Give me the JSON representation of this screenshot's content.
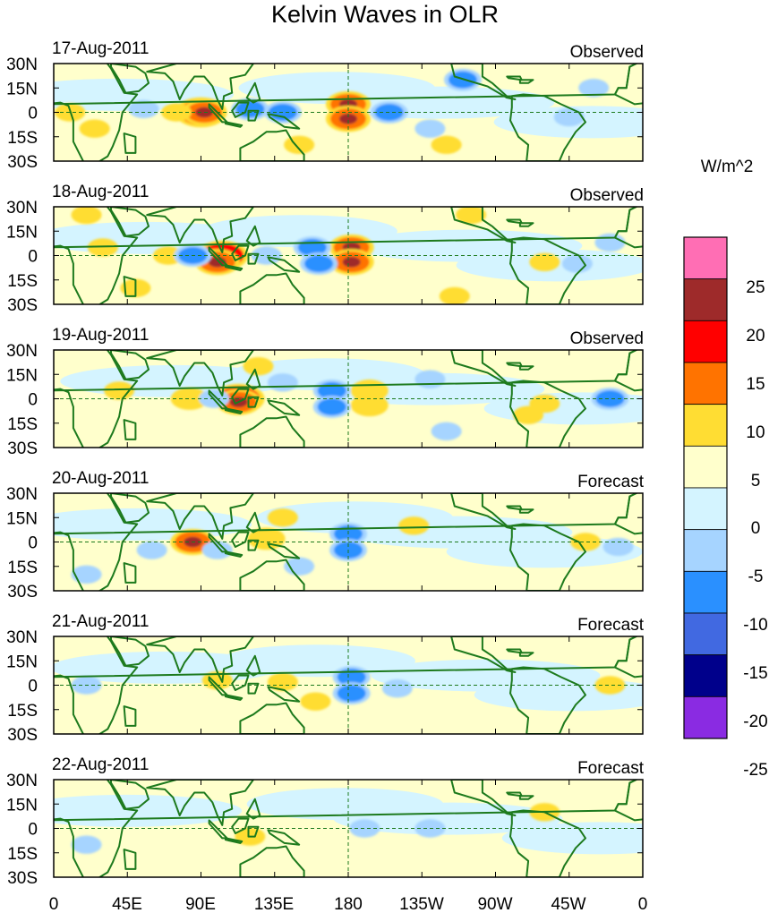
{
  "title": "Kelvin Waves in OLR",
  "units": "W/m^2",
  "lat_labels": [
    "30N",
    "15N",
    "0",
    "15S",
    "30S"
  ],
  "lon_labels": [
    "0",
    "45E",
    "90E",
    "135E",
    "180",
    "135W",
    "90W",
    "45W",
    "0"
  ],
  "colorbar": {
    "labels": [
      "25",
      "20",
      "15",
      "10",
      "5",
      "0",
      "-5",
      "-10",
      "-15",
      "-20",
      "-25"
    ],
    "colors": [
      "#ff6eb4",
      "#9e2a2a",
      "#ff0000",
      "#ff7300",
      "#ffdd33",
      "#ffffcc",
      "#d4f4ff",
      "#a6d4ff",
      "#2a90ff",
      "#4169e1",
      "#00008b",
      "#8a2be2"
    ]
  },
  "colors": {
    "land": "#1d7a1d",
    "neutral_pos": "#ffffcc",
    "neutral_neg": "#d4f4ff"
  },
  "panels": [
    {
      "date": "17-Aug-2011",
      "source": "Observed"
    },
    {
      "date": "18-Aug-2011",
      "source": "Observed"
    },
    {
      "date": "19-Aug-2011",
      "source": "Observed"
    },
    {
      "date": "20-Aug-2011",
      "source": "Forecast"
    },
    {
      "date": "21-Aug-2011",
      "source": "Forecast"
    },
    {
      "date": "22-Aug-2011",
      "source": "Forecast"
    }
  ],
  "anomalies": [
    [
      {
        "lon": 90,
        "lat": 0,
        "level": 4
      },
      {
        "lon": 92,
        "lat": 0,
        "level": 3
      },
      {
        "lon": 75,
        "lat": 0,
        "level": 1
      },
      {
        "lon": 180,
        "lat": 5,
        "level": 3
      },
      {
        "lon": 180,
        "lat": -4,
        "level": 3
      },
      {
        "lon": 140,
        "lat": 0,
        "level": -2
      },
      {
        "lon": 120,
        "lat": 2,
        "level": -2
      },
      {
        "lon": 205,
        "lat": 0,
        "level": -2
      },
      {
        "lon": 55,
        "lat": 2,
        "level": -1
      },
      {
        "lon": 250,
        "lat": 20,
        "level": -2
      },
      {
        "lon": 315,
        "lat": -3,
        "level": -1
      },
      {
        "lon": 25,
        "lat": -10,
        "level": 1
      },
      {
        "lon": 150,
        "lat": -20,
        "level": 1
      },
      {
        "lon": 230,
        "lat": -10,
        "level": -1
      },
      {
        "lon": 240,
        "lat": -20,
        "level": 1
      },
      {
        "lon": 330,
        "lat": 15,
        "level": -1
      },
      {
        "lon": 10,
        "lat": 0,
        "level": 1
      }
    ],
    [
      {
        "lon": 103,
        "lat": 0,
        "level": 4
      },
      {
        "lon": 100,
        "lat": -4,
        "level": 3
      },
      {
        "lon": 70,
        "lat": 0,
        "level": 1
      },
      {
        "lon": 182,
        "lat": 5,
        "level": 3
      },
      {
        "lon": 182,
        "lat": -4,
        "level": 3
      },
      {
        "lon": 85,
        "lat": 0,
        "level": -2
      },
      {
        "lon": 158,
        "lat": 5,
        "level": -2
      },
      {
        "lon": 162,
        "lat": -5,
        "level": -2
      },
      {
        "lon": 130,
        "lat": 0,
        "level": -1
      },
      {
        "lon": 30,
        "lat": 5,
        "level": 1
      },
      {
        "lon": 20,
        "lat": 25,
        "level": 1
      },
      {
        "lon": 255,
        "lat": 25,
        "level": 1
      },
      {
        "lon": 300,
        "lat": -4,
        "level": 1
      },
      {
        "lon": 340,
        "lat": 8,
        "level": -1
      },
      {
        "lon": 320,
        "lat": -5,
        "level": -1
      },
      {
        "lon": 245,
        "lat": -25,
        "level": 1
      },
      {
        "lon": 50,
        "lat": -20,
        "level": 1
      }
    ],
    [
      {
        "lon": 113,
        "lat": 0,
        "level": 4
      },
      {
        "lon": 113,
        "lat": -2,
        "level": 3
      },
      {
        "lon": 83,
        "lat": 0,
        "level": 2
      },
      {
        "lon": 193,
        "lat": 5,
        "level": 2
      },
      {
        "lon": 193,
        "lat": -4,
        "level": 2
      },
      {
        "lon": 170,
        "lat": 5,
        "level": -2
      },
      {
        "lon": 170,
        "lat": -5,
        "level": -2
      },
      {
        "lon": 98,
        "lat": 0,
        "level": -1
      },
      {
        "lon": 140,
        "lat": 10,
        "level": -1
      },
      {
        "lon": 125,
        "lat": 20,
        "level": 1
      },
      {
        "lon": 340,
        "lat": 0,
        "level": -2
      },
      {
        "lon": 300,
        "lat": -3,
        "level": 1
      },
      {
        "lon": 290,
        "lat": -10,
        "level": 1
      },
      {
        "lon": 40,
        "lat": 5,
        "level": 1
      },
      {
        "lon": 240,
        "lat": -20,
        "level": -1
      },
      {
        "lon": 230,
        "lat": 12,
        "level": -1
      }
    ],
    [
      {
        "lon": 85,
        "lat": 0,
        "level": 3
      },
      {
        "lon": 130,
        "lat": 2,
        "level": 2
      },
      {
        "lon": 180,
        "lat": 5,
        "level": -2
      },
      {
        "lon": 180,
        "lat": -5,
        "level": -2
      },
      {
        "lon": 100,
        "lat": -5,
        "level": -1
      },
      {
        "lon": 140,
        "lat": 15,
        "level": 1
      },
      {
        "lon": 150,
        "lat": -15,
        "level": -1
      },
      {
        "lon": 325,
        "lat": 0,
        "level": 1
      },
      {
        "lon": 345,
        "lat": -3,
        "level": -1
      },
      {
        "lon": 220,
        "lat": 10,
        "level": 1
      },
      {
        "lon": 60,
        "lat": -5,
        "level": -1
      },
      {
        "lon": 20,
        "lat": -20,
        "level": -1
      }
    ],
    [
      {
        "lon": 182,
        "lat": 5,
        "level": -2
      },
      {
        "lon": 182,
        "lat": -5,
        "level": -2
      },
      {
        "lon": 140,
        "lat": 2,
        "level": 1
      },
      {
        "lon": 100,
        "lat": 3,
        "level": 1
      },
      {
        "lon": 160,
        "lat": -10,
        "level": 1
      },
      {
        "lon": 210,
        "lat": -2,
        "level": -1
      },
      {
        "lon": 20,
        "lat": 0,
        "level": -1
      },
      {
        "lon": 340,
        "lat": 0,
        "level": 1
      }
    ],
    [
      {
        "lon": 190,
        "lat": 0,
        "level": -1
      },
      {
        "lon": 120,
        "lat": -5,
        "level": 1
      },
      {
        "lon": 230,
        "lat": 0,
        "level": -1
      },
      {
        "lon": 20,
        "lat": -10,
        "level": -1
      },
      {
        "lon": 300,
        "lat": 10,
        "level": 1
      }
    ]
  ]
}
